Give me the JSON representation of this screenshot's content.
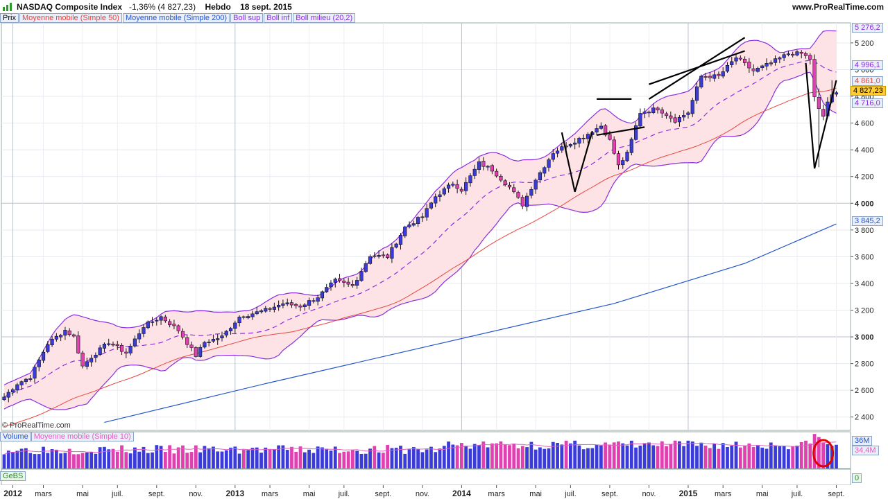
{
  "header": {
    "instrument": "NASDAQ Composite Index",
    "change": "-1,36% (4 827,23)",
    "period": "Hebdo",
    "date": "18 sept. 2015",
    "site": "www.ProRealTime.com",
    "copyright": "© ProRealTime.com"
  },
  "legend": {
    "price": "Prix",
    "ma50": "Moyenne mobile (Simple 50)",
    "ma200": "Moyenne mobile (Simple 200)",
    "boll_sup": "Boll sup",
    "boll_inf": "Boll inf",
    "boll_mid": "Boll milieu (20,2)"
  },
  "volume_legend": {
    "volume": "Volume",
    "ma10": "Moyenne mobile (Simple 10)"
  },
  "gebs_label": "GeBS",
  "colors": {
    "up": "#3b3bd9",
    "down": "#e040b0",
    "ma50": "#e8453c",
    "ma200": "#2255cc",
    "boll": "#8a2be2",
    "band_fill": "#fde3e6",
    "volume_ma": "#e060c0",
    "annotation": "#000000",
    "circle": "#e00000"
  },
  "price_labels": {
    "boll_sup": "5 276,2",
    "boll_mid": "4 996,1",
    "ma50": "4 861,0",
    "last": "4 827,23",
    "boll_inf": "4 716,0",
    "ma200": "3 845,2"
  },
  "volume_labels": {
    "level": "36M",
    "ma": "34,4M",
    "gebs": "0"
  },
  "chart_data": {
    "type": "candlestick",
    "title": "NASDAQ Composite Index",
    "ylim": [
      2300,
      5350
    ],
    "yticks": [
      "2 400",
      "2 600",
      "2 800",
      "3 000",
      "3 200",
      "3 400",
      "3 600",
      "3 800",
      "4 000",
      "4 200",
      "4 400",
      "4 600",
      "4 800",
      "5 000",
      "5 200"
    ],
    "ytick_values": [
      2400,
      2600,
      2800,
      3000,
      3200,
      3400,
      3600,
      3800,
      4000,
      4200,
      4400,
      4600,
      4800,
      5000,
      5200
    ],
    "bold_ticks": [
      3000,
      4000
    ],
    "xticks": [
      {
        "week": 2,
        "label": "2012",
        "bold": true
      },
      {
        "week": 9,
        "label": "mars"
      },
      {
        "week": 18,
        "label": "mai"
      },
      {
        "week": 26,
        "label": "juil."
      },
      {
        "week": 35,
        "label": "sept."
      },
      {
        "week": 44,
        "label": "nov."
      },
      {
        "week": 53,
        "label": "2013",
        "bold": true
      },
      {
        "week": 61,
        "label": "mars"
      },
      {
        "week": 70,
        "label": "mai"
      },
      {
        "week": 78,
        "label": "juil."
      },
      {
        "week": 87,
        "label": "sept."
      },
      {
        "week": 96,
        "label": "nov."
      },
      {
        "week": 105,
        "label": "2014",
        "bold": true
      },
      {
        "week": 113,
        "label": "mars"
      },
      {
        "week": 122,
        "label": "mai"
      },
      {
        "week": 130,
        "label": "juil."
      },
      {
        "week": 139,
        "label": "sept."
      },
      {
        "week": 148,
        "label": "nov."
      },
      {
        "week": 157,
        "label": "2015",
        "bold": true
      },
      {
        "week": 165,
        "label": "mars"
      },
      {
        "week": 174,
        "label": "mai"
      },
      {
        "week": 182,
        "label": "juil."
      },
      {
        "week": 191,
        "label": "sept."
      }
    ],
    "close_anchors": [
      [
        0,
        2550
      ],
      [
        3,
        2650
      ],
      [
        6,
        2700
      ],
      [
        10,
        2950
      ],
      [
        14,
        3050
      ],
      [
        16,
        3000
      ],
      [
        18,
        2780
      ],
      [
        20,
        2850
      ],
      [
        24,
        2960
      ],
      [
        28,
        2880
      ],
      [
        32,
        3080
      ],
      [
        36,
        3150
      ],
      [
        40,
        3050
      ],
      [
        44,
        2860
      ],
      [
        46,
        2960
      ],
      [
        50,
        3000
      ],
      [
        54,
        3150
      ],
      [
        60,
        3200
      ],
      [
        64,
        3250
      ],
      [
        68,
        3230
      ],
      [
        72,
        3300
      ],
      [
        76,
        3420
      ],
      [
        80,
        3380
      ],
      [
        84,
        3610
      ],
      [
        88,
        3600
      ],
      [
        92,
        3820
      ],
      [
        96,
        3900
      ],
      [
        99,
        4050
      ],
      [
        103,
        4150
      ],
      [
        105,
        4100
      ],
      [
        109,
        4300
      ],
      [
        112,
        4250
      ],
      [
        116,
        4120
      ],
      [
        119,
        3990
      ],
      [
        122,
        4180
      ],
      [
        126,
        4380
      ],
      [
        130,
        4450
      ],
      [
        133,
        4500
      ],
      [
        137,
        4580
      ],
      [
        139,
        4470
      ],
      [
        141,
        4280
      ],
      [
        143,
        4370
      ],
      [
        146,
        4680
      ],
      [
        150,
        4710
      ],
      [
        154,
        4620
      ],
      [
        157,
        4680
      ],
      [
        160,
        4950
      ],
      [
        164,
        4950
      ],
      [
        168,
        5090
      ],
      [
        172,
        4990
      ],
      [
        176,
        5050
      ],
      [
        180,
        5120
      ],
      [
        183,
        5120
      ],
      [
        185,
        5080
      ],
      [
        186,
        4790
      ],
      [
        187,
        4700
      ],
      [
        188,
        4650
      ],
      [
        189,
        4760
      ],
      [
        190,
        4800
      ],
      [
        191,
        4827.23
      ]
    ],
    "ma200_anchors": [
      [
        23,
        2360
      ],
      [
        60,
        2650
      ],
      [
        100,
        2950
      ],
      [
        140,
        3250
      ],
      [
        170,
        3550
      ],
      [
        191,
        3845.2
      ]
    ],
    "volume_ylim": [
      0,
      45
    ],
    "volume_ma_level": 34.4,
    "annotations": [
      {
        "type": "line",
        "from": [
          128,
          4530
        ],
        "to": [
          131,
          4085
        ]
      },
      {
        "type": "line",
        "from": [
          131,
          4085
        ],
        "to": [
          135,
          4540
        ]
      },
      {
        "type": "line",
        "from": [
          136,
          4780
        ],
        "to": [
          144,
          4780
        ]
      },
      {
        "type": "line",
        "from": [
          136,
          4510
        ],
        "to": [
          147,
          4570
        ]
      },
      {
        "type": "line",
        "from": [
          148,
          4780
        ],
        "to": [
          170,
          5240
        ]
      },
      {
        "type": "line",
        "from": [
          148,
          4890
        ],
        "to": [
          170,
          5140
        ]
      },
      {
        "type": "line",
        "from": [
          184,
          5050
        ],
        "to": [
          186,
          4260
        ]
      },
      {
        "type": "line",
        "from": [
          186,
          4260
        ],
        "to": [
          191,
          4920
        ]
      }
    ]
  }
}
